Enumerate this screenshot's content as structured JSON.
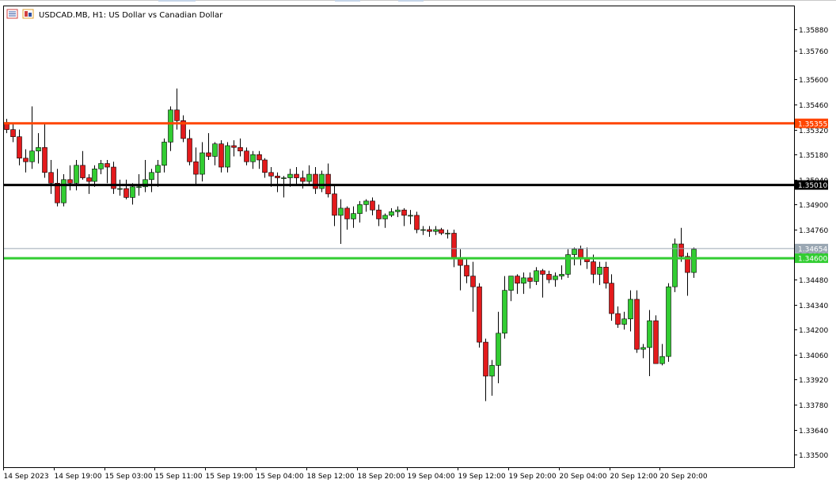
{
  "header": {
    "symbol_icon": "chart-window-icon",
    "title": "USDCAD.MB, H1:  US Dollar vs Canadian Dollar"
  },
  "colors": {
    "bull": "#32cd32",
    "bear": "#e31a1c",
    "wick": "#000000",
    "axis": "#000000",
    "resistance": "#ff4500",
    "pivot": "#000000",
    "support": "#32cd32",
    "bid": "#9aa7b3"
  },
  "chart_data": {
    "type": "candlestick",
    "title": "USDCAD.MB, H1:  US Dollar vs Canadian Dollar",
    "ylim": [
      1.3343,
      1.3601
    ],
    "y_ticks": [
      "1.35880",
      "1.35760",
      "1.35600",
      "1.35460",
      "1.35320",
      "1.35180",
      "1.35040",
      "1.34900",
      "1.34760",
      "1.34620",
      "1.34480",
      "1.34340",
      "1.34200",
      "1.34060",
      "1.33920",
      "1.33780",
      "1.33640",
      "1.33500"
    ],
    "x_labels": [
      "14 Sep 2023",
      "14 Sep 19:00",
      "15 Sep 03:00",
      "15 Sep 11:00",
      "15 Sep 19:00",
      "15 Sep 04:00",
      "18 Sep 12:00",
      "18 Sep 20:00",
      "19 Sep 04:00",
      "19 Sep 12:00",
      "19 Sep 20:00",
      "20 Sep 04:00",
      "20 Sep 12:00",
      "20 Sep 20:00"
    ],
    "hlines": [
      {
        "id": "resistance",
        "value": 1.35355,
        "label": "1.35355"
      },
      {
        "id": "pivot",
        "value": 1.3501,
        "label": "1.35010"
      },
      {
        "id": "bid",
        "value": 1.34654,
        "label": "1.34654"
      },
      {
        "id": "support",
        "value": 1.346,
        "label": "1.34600"
      }
    ],
    "candles": [
      [
        1.3536,
        1.3538,
        1.353,
        1.3532
      ],
      [
        1.3532,
        1.3535,
        1.3525,
        1.3528
      ],
      [
        1.3528,
        1.3532,
        1.3512,
        1.3516
      ],
      [
        1.3516,
        1.3521,
        1.3508,
        1.3514
      ],
      [
        1.3514,
        1.3545,
        1.351,
        1.352
      ],
      [
        1.352,
        1.353,
        1.3513,
        1.3522
      ],
      [
        1.3522,
        1.3535,
        1.3505,
        1.3508
      ],
      [
        1.3508,
        1.3515,
        1.3496,
        1.3502
      ],
      [
        1.3502,
        1.351,
        1.3489,
        1.3491
      ],
      [
        1.3491,
        1.3507,
        1.3489,
        1.3504
      ],
      [
        1.3504,
        1.3512,
        1.3498,
        1.3502
      ],
      [
        1.3502,
        1.3515,
        1.3498,
        1.3512
      ],
      [
        1.3512,
        1.352,
        1.3504,
        1.3505
      ],
      [
        1.3505,
        1.3507,
        1.3496,
        1.3503
      ],
      [
        1.3503,
        1.3512,
        1.35,
        1.351
      ],
      [
        1.351,
        1.3515,
        1.3507,
        1.3513
      ],
      [
        1.3513,
        1.3515,
        1.3502,
        1.3511
      ],
      [
        1.3511,
        1.3514,
        1.3496,
        1.3499
      ],
      [
        1.3499,
        1.3504,
        1.3495,
        1.3499
      ],
      [
        1.3499,
        1.3504,
        1.3493,
        1.3494
      ],
      [
        1.3494,
        1.3502,
        1.349,
        1.35
      ],
      [
        1.35,
        1.3507,
        1.3495,
        1.35
      ],
      [
        1.35,
        1.3515,
        1.3497,
        1.3504
      ],
      [
        1.3504,
        1.351,
        1.3497,
        1.3508
      ],
      [
        1.3508,
        1.3515,
        1.35,
        1.3512
      ],
      [
        1.3512,
        1.3527,
        1.3508,
        1.3525
      ],
      [
        1.3525,
        1.3545,
        1.352,
        1.3543
      ],
      [
        1.3543,
        1.3555,
        1.3532,
        1.3537
      ],
      [
        1.3537,
        1.354,
        1.3525,
        1.3527
      ],
      [
        1.3527,
        1.3532,
        1.3512,
        1.3514
      ],
      [
        1.3514,
        1.3522,
        1.3501,
        1.3507
      ],
      [
        1.3507,
        1.3525,
        1.3503,
        1.3519
      ],
      [
        1.3519,
        1.353,
        1.3515,
        1.3517
      ],
      [
        1.3517,
        1.3525,
        1.3512,
        1.3524
      ],
      [
        1.3524,
        1.3526,
        1.3508,
        1.3511
      ],
      [
        1.3511,
        1.3525,
        1.3508,
        1.3523
      ],
      [
        1.3523,
        1.3526,
        1.3517,
        1.3522
      ],
      [
        1.3522,
        1.3527,
        1.3517,
        1.352
      ],
      [
        1.352,
        1.3522,
        1.3512,
        1.3514
      ],
      [
        1.3514,
        1.352,
        1.351,
        1.3518
      ],
      [
        1.3518,
        1.352,
        1.351,
        1.3515
      ],
      [
        1.3515,
        1.3516,
        1.3505,
        1.3508
      ],
      [
        1.3508,
        1.3511,
        1.35,
        1.3506
      ],
      [
        1.3506,
        1.3508,
        1.3497,
        1.3505
      ],
      [
        1.3505,
        1.3506,
        1.3494,
        1.3505
      ],
      [
        1.3505,
        1.351,
        1.35,
        1.3507
      ],
      [
        1.3507,
        1.3511,
        1.3501,
        1.3505
      ],
      [
        1.3505,
        1.3509,
        1.3499,
        1.3503
      ],
      [
        1.3503,
        1.3512,
        1.3501,
        1.3507
      ],
      [
        1.3507,
        1.3511,
        1.3496,
        1.3499
      ],
      [
        1.3499,
        1.3509,
        1.3497,
        1.3507
      ],
      [
        1.3507,
        1.3513,
        1.3494,
        1.3496
      ],
      [
        1.3496,
        1.3501,
        1.3478,
        1.3484
      ],
      [
        1.3484,
        1.3493,
        1.3468,
        1.3488
      ],
      [
        1.3488,
        1.3489,
        1.3476,
        1.3482
      ],
      [
        1.3482,
        1.3489,
        1.3477,
        1.3485
      ],
      [
        1.3485,
        1.3492,
        1.348,
        1.349
      ],
      [
        1.349,
        1.3493,
        1.3486,
        1.3492
      ],
      [
        1.3492,
        1.3494,
        1.3484,
        1.3487
      ],
      [
        1.3487,
        1.349,
        1.3478,
        1.3482
      ],
      [
        1.3482,
        1.3485,
        1.3477,
        1.3484
      ],
      [
        1.3484,
        1.3488,
        1.3483,
        1.3486
      ],
      [
        1.3486,
        1.3489,
        1.3483,
        1.3487
      ],
      [
        1.3487,
        1.3488,
        1.3478,
        1.3484
      ],
      [
        1.3484,
        1.3487,
        1.3479,
        1.3484
      ],
      [
        1.3484,
        1.3486,
        1.3474,
        1.3476
      ],
      [
        1.3476,
        1.3478,
        1.3473,
        1.3476
      ],
      [
        1.3476,
        1.3478,
        1.3472,
        1.3475
      ],
      [
        1.3475,
        1.3478,
        1.3473,
        1.3476
      ],
      [
        1.3476,
        1.3477,
        1.3473,
        1.3474
      ],
      [
        1.3474,
        1.3476,
        1.3471,
        1.3474
      ],
      [
        1.3474,
        1.3476,
        1.3455,
        1.346
      ],
      [
        1.346,
        1.3465,
        1.3442,
        1.3456
      ],
      [
        1.3456,
        1.346,
        1.3446,
        1.345
      ],
      [
        1.345,
        1.3458,
        1.343,
        1.3444
      ],
      [
        1.3444,
        1.3446,
        1.341,
        1.3413
      ],
      [
        1.3413,
        1.3415,
        1.338,
        1.3394
      ],
      [
        1.3394,
        1.3403,
        1.3383,
        1.34
      ],
      [
        1.34,
        1.343,
        1.339,
        1.3418
      ],
      [
        1.3418,
        1.345,
        1.3415,
        1.3442
      ],
      [
        1.3442,
        1.345,
        1.3436,
        1.345
      ],
      [
        1.345,
        1.3451,
        1.344,
        1.3446
      ],
      [
        1.3446,
        1.3452,
        1.344,
        1.3449
      ],
      [
        1.3449,
        1.3452,
        1.3443,
        1.3447
      ],
      [
        1.3447,
        1.3455,
        1.3445,
        1.3453
      ],
      [
        1.3453,
        1.3454,
        1.3438,
        1.3451
      ],
      [
        1.3451,
        1.3453,
        1.3446,
        1.3448
      ],
      [
        1.3448,
        1.3452,
        1.3444,
        1.345
      ],
      [
        1.345,
        1.3456,
        1.3448,
        1.3451
      ],
      [
        1.3451,
        1.3465,
        1.3449,
        1.3462
      ],
      [
        1.3462,
        1.3466,
        1.3456,
        1.3465
      ],
      [
        1.3465,
        1.3467,
        1.3456,
        1.346
      ],
      [
        1.346,
        1.3466,
        1.3454,
        1.3458
      ],
      [
        1.3458,
        1.3462,
        1.3446,
        1.3451
      ],
      [
        1.3451,
        1.3458,
        1.3445,
        1.3455
      ],
      [
        1.3455,
        1.3458,
        1.3443,
        1.3446
      ],
      [
        1.3446,
        1.3451,
        1.3425,
        1.3429
      ],
      [
        1.3429,
        1.3433,
        1.3421,
        1.3423
      ],
      [
        1.3423,
        1.343,
        1.342,
        1.3426
      ],
      [
        1.3426,
        1.3442,
        1.3419,
        1.3437
      ],
      [
        1.3437,
        1.3442,
        1.3407,
        1.3409
      ],
      [
        1.3409,
        1.3412,
        1.3404,
        1.341
      ],
      [
        1.341,
        1.3431,
        1.3394,
        1.3425
      ],
      [
        1.3425,
        1.3428,
        1.3401,
        1.3401
      ],
      [
        1.3401,
        1.3412,
        1.34,
        1.3405
      ],
      [
        1.3405,
        1.3446,
        1.3402,
        1.3444
      ],
      [
        1.3444,
        1.3471,
        1.3441,
        1.3468
      ],
      [
        1.3468,
        1.3477,
        1.3458,
        1.3461
      ],
      [
        1.3461,
        1.3463,
        1.3439,
        1.3452
      ],
      [
        1.3452,
        1.3466,
        1.3449,
        1.3465
      ]
    ]
  }
}
